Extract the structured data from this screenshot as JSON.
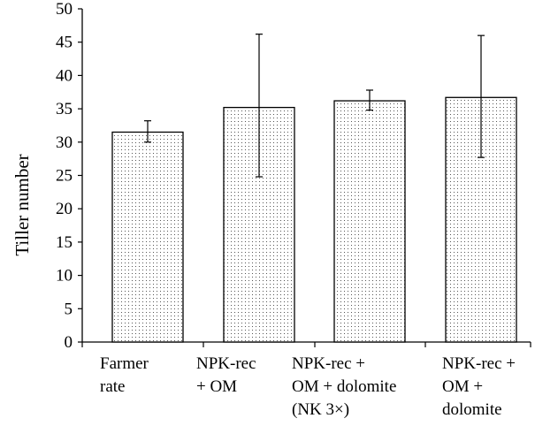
{
  "colors": {
    "axis": "#000000",
    "bar_fill": "#ffffff",
    "bar_dots": "#555555",
    "bar_stroke": "#000000",
    "text": "#000000"
  },
  "chart_data": {
    "type": "bar",
    "ylabel": "Tiller number",
    "ylim": [
      0,
      50
    ],
    "yticks": [
      0,
      5,
      10,
      15,
      20,
      25,
      30,
      35,
      40,
      45,
      50
    ],
    "grid": false,
    "fill_pattern": "dotted",
    "categories": [
      {
        "lines": [
          "Farmer",
          "rate"
        ]
      },
      {
        "lines": [
          "NPK-rec",
          "+  OM"
        ]
      },
      {
        "lines": [
          "NPK-rec +",
          "OM + dolomite",
          "(NK 3×)"
        ]
      },
      {
        "lines": [
          "NPK-rec +",
          "OM  +",
          "dolomite"
        ]
      }
    ],
    "values": [
      31.5,
      35.2,
      36.2,
      36.7
    ],
    "error_low": [
      30.0,
      24.8,
      34.8,
      27.7
    ],
    "error_high": [
      33.2,
      46.2,
      37.8,
      46.0
    ]
  }
}
